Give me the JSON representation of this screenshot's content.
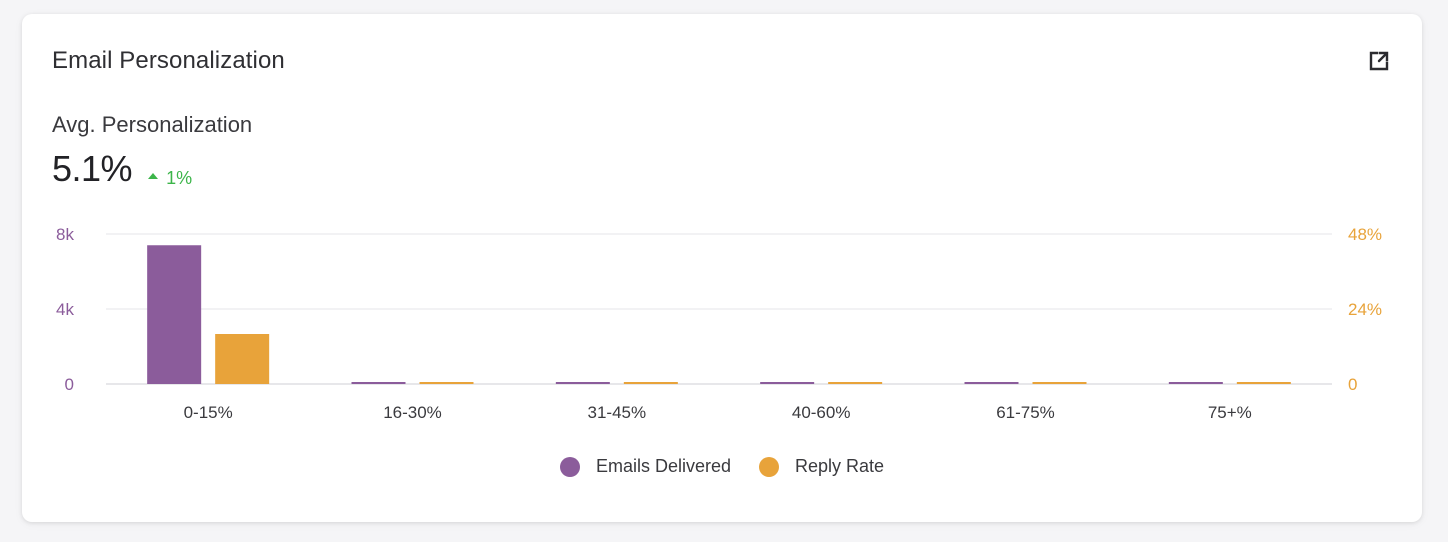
{
  "card": {
    "title": "Email Personalization",
    "expand_icon": "external-link-icon"
  },
  "metric": {
    "label": "Avg. Personalization",
    "value": "5.1%",
    "delta": "1%",
    "delta_direction": "up",
    "delta_color": "#3cb54a"
  },
  "colors": {
    "emails": "#8b5c9b",
    "reply": "#e8a33a"
  },
  "chart_data": {
    "type": "bar",
    "categories": [
      "0-15%",
      "16-30%",
      "31-45%",
      "40-60%",
      "61-75%",
      "75+%"
    ],
    "series": [
      {
        "name": "Emails Delivered",
        "axis": "left",
        "values": [
          7400,
          50,
          50,
          50,
          50,
          50
        ]
      },
      {
        "name": "Reply Rate",
        "axis": "right",
        "values": [
          16,
          0.2,
          0.2,
          0.2,
          0.2,
          0.2
        ]
      }
    ],
    "y_left": {
      "min": 0,
      "max": 8000,
      "ticks": [
        0,
        4000,
        8000
      ],
      "tick_labels": [
        "0",
        "4k",
        "8k"
      ]
    },
    "y_right": {
      "min": 0,
      "max": 48,
      "ticks": [
        0,
        24,
        48
      ],
      "tick_labels": [
        "0",
        "24%",
        "48%"
      ]
    },
    "grid": true,
    "legend_position": "bottom-center"
  }
}
